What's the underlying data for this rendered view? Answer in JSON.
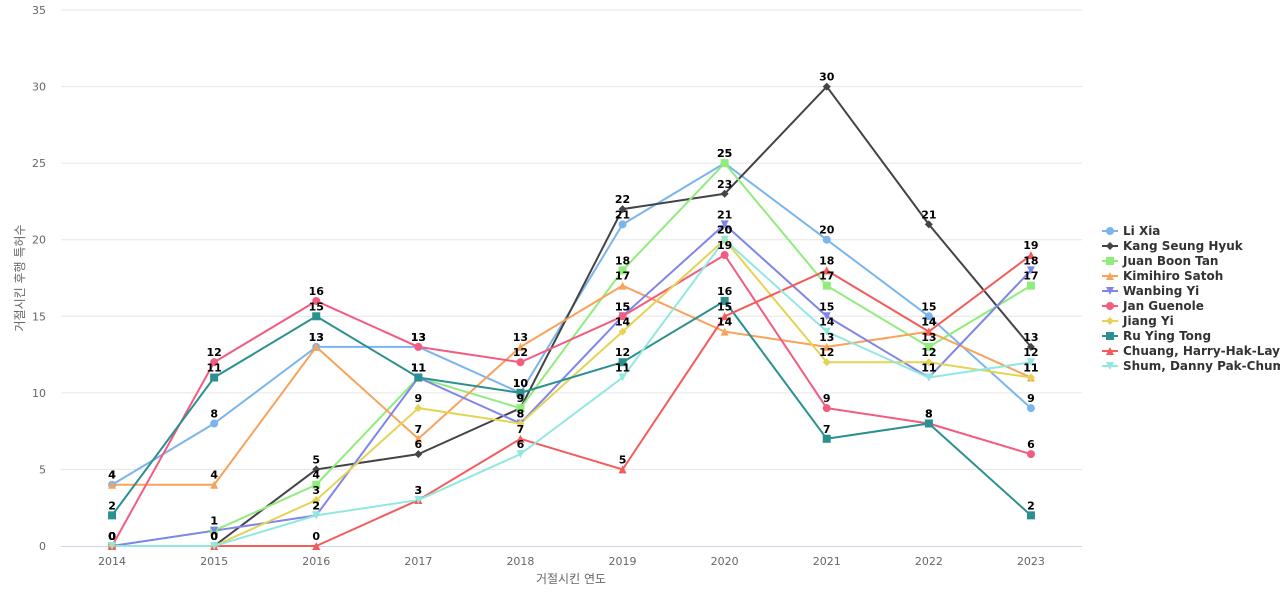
{
  "chart_data": {
    "type": "line",
    "title": "",
    "xlabel": "거절시킨 연도",
    "ylabel": "거절시킨 후행 특허수",
    "x": [
      "2014",
      "2015",
      "2016",
      "2017",
      "2018",
      "2019",
      "2020",
      "2021",
      "2022",
      "2023"
    ],
    "ylim": [
      0,
      35
    ],
    "yticks": [
      0,
      5,
      10,
      15,
      20,
      25,
      30,
      35
    ],
    "grid": true,
    "legend_position": "right",
    "data_labels": true,
    "series": [
      {
        "name": "Li Xia",
        "color": "#7cb5ec",
        "marker": "circle",
        "values": [
          4,
          8,
          13,
          13,
          10,
          21,
          25,
          20,
          15,
          9
        ]
      },
      {
        "name": "Kang Seung Hyuk",
        "color": "#434348",
        "marker": "diamond",
        "values": [
          0,
          0,
          5,
          6,
          9,
          22,
          23,
          30,
          21,
          13
        ]
      },
      {
        "name": "Juan Boon Tan",
        "color": "#90ed7d",
        "marker": "square",
        "values": [
          0,
          1,
          4,
          11,
          9,
          18,
          25,
          17,
          13,
          17
        ]
      },
      {
        "name": "Kimihiro Satoh",
        "color": "#f7a35c",
        "marker": "triangle",
        "values": [
          4,
          4,
          13,
          7,
          13,
          17,
          14,
          13,
          14,
          11
        ]
      },
      {
        "name": "Wanbing Yi",
        "color": "#8085e9",
        "marker": "triangle-down",
        "values": [
          0,
          1,
          2,
          11,
          8,
          15,
          21,
          15,
          11,
          18
        ]
      },
      {
        "name": "Jan Guenole",
        "color": "#f15c80",
        "marker": "circle",
        "values": [
          0,
          12,
          16,
          13,
          12,
          15,
          19,
          9,
          8,
          6
        ]
      },
      {
        "name": "Jiang Yi",
        "color": "#e4d354",
        "marker": "diamond",
        "values": [
          0,
          0,
          3,
          9,
          8,
          14,
          20,
          12,
          12,
          11
        ]
      },
      {
        "name": "Ru Ying Tong",
        "color": "#2b908f",
        "marker": "square",
        "values": [
          2,
          11,
          15,
          11,
          10,
          12,
          16,
          7,
          8,
          2
        ]
      },
      {
        "name": "Chuang, Harry-Hak-Lay",
        "color": "#f45b5b",
        "marker": "triangle",
        "values": [
          0,
          0,
          0,
          3,
          7,
          5,
          15,
          18,
          14,
          19
        ]
      },
      {
        "name": "Shum, Danny Pak-Chum",
        "color": "#91e8e1",
        "marker": "triangle-down",
        "values": [
          0,
          0,
          2,
          3,
          6,
          11,
          20,
          14,
          11,
          12
        ]
      }
    ]
  }
}
